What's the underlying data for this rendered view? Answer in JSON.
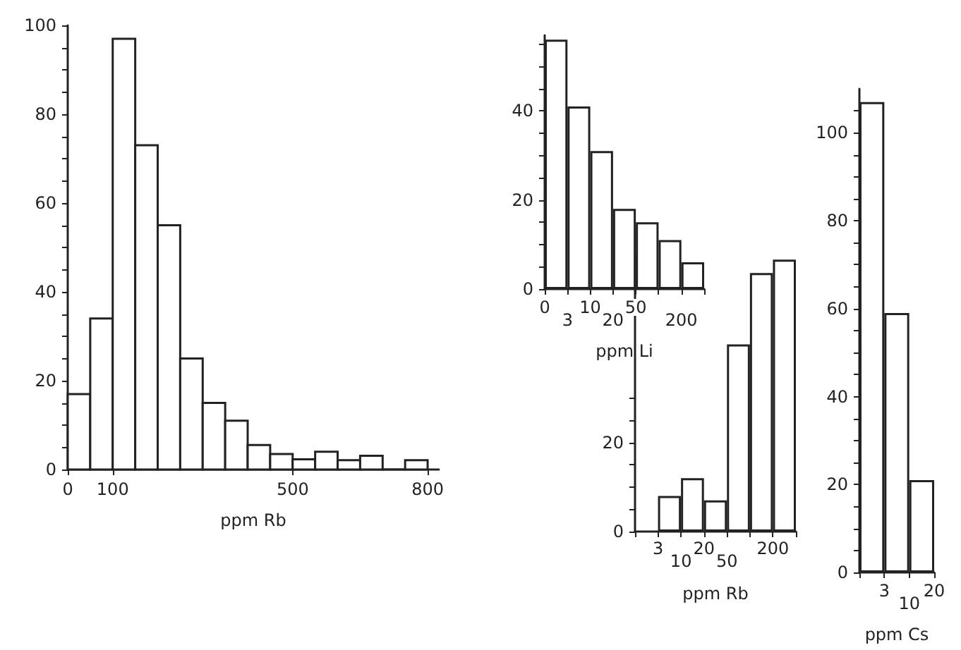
{
  "chart_data": [
    {
      "type": "histogram",
      "xlabel": "ppm Rb",
      "bins": [
        0,
        50,
        100,
        150,
        200,
        250,
        300,
        350,
        400,
        450,
        500,
        550,
        600,
        650,
        700,
        750,
        800
      ],
      "values": [
        17,
        34,
        97,
        73,
        55,
        25,
        15,
        11,
        5.5,
        3.5,
        2.3,
        4,
        2.1,
        3.1,
        0,
        2.1
      ],
      "color": "#ffffff",
      "xlim": [
        0,
        825
      ],
      "xticks": [
        0,
        100,
        500,
        800
      ],
      "ylim": [
        0,
        100
      ],
      "yticks": [
        0,
        {
          "value": 5,
          "label": null
        },
        {
          "value": 10,
          "label": null
        },
        {
          "value": 15,
          "label": null
        },
        20,
        {
          "value": 25,
          "label": null
        },
        {
          "value": 30,
          "label": null
        },
        {
          "value": 35,
          "label": null
        },
        40,
        {
          "value": 45,
          "label": null
        },
        {
          "value": 50,
          "label": null
        },
        {
          "value": 55,
          "label": null
        },
        60,
        {
          "value": 65,
          "label": null
        },
        {
          "value": 70,
          "label": null
        },
        {
          "value": 75,
          "label": null
        },
        80,
        {
          "value": 85,
          "label": null
        },
        {
          "value": 90,
          "label": null
        },
        {
          "value": 95,
          "label": null
        },
        100
      ],
      "grid": false
    },
    {
      "type": "bar",
      "xlabel": "ppm Li",
      "categories": [
        null,
        null,
        null,
        null,
        null,
        null,
        null
      ],
      "values": [
        56,
        41,
        31,
        18,
        15,
        11,
        6
      ],
      "color": "#ffffff",
      "annotations": [
        "0",
        "3",
        "10",
        "20",
        "50",
        "200"
      ],
      "ylim": [
        0,
        57
      ],
      "yticks": [
        0,
        {
          "value": 5,
          "label": null
        },
        {
          "value": 10,
          "label": null
        },
        {
          "value": 15,
          "label": null
        },
        20,
        {
          "value": 25,
          "label": null
        },
        {
          "value": 30,
          "label": null
        },
        {
          "value": 35,
          "label": null
        },
        40,
        {
          "value": 45,
          "label": null
        },
        {
          "value": 50,
          "label": null
        },
        {
          "value": 55,
          "label": null
        }
      ],
      "grid": false
    },
    {
      "type": "bar",
      "xlabel": "ppm Rb",
      "categories": [
        null,
        null,
        null,
        null,
        null,
        null,
        null
      ],
      "values": [
        null,
        8,
        12,
        7,
        42,
        58,
        61
      ],
      "color": "#ffffff",
      "annotations": [
        "3",
        "10",
        "20",
        "50",
        "200"
      ],
      "ylim": [
        0,
        62
      ],
      "yticks": [
        0,
        {
          "value": 5,
          "label": null
        },
        {
          "value": 10,
          "label": null
        },
        {
          "value": 15,
          "label": null
        },
        20,
        {
          "value": 25,
          "label": null
        },
        {
          "value": 30,
          "label": null
        }
      ],
      "grid": false
    },
    {
      "type": "bar",
      "xlabel": "ppm Cs",
      "categories": [
        null,
        null,
        null
      ],
      "values": [
        107,
        59,
        21
      ],
      "color": "#ffffff",
      "annotations": [
        "3",
        "10",
        "20"
      ],
      "ylim": [
        0,
        110
      ],
      "yticks": [
        0,
        {
          "value": 5,
          "label": null
        },
        {
          "value": 10,
          "label": null
        },
        {
          "value": 15,
          "label": null
        },
        20,
        {
          "value": 25,
          "label": null
        },
        {
          "value": 30,
          "label": null
        },
        {
          "value": 35,
          "label": null
        },
        40,
        {
          "value": 45,
          "label": null
        },
        {
          "value": 50,
          "label": null
        },
        {
          "value": 55,
          "label": null
        },
        60,
        {
          "value": 65,
          "label": null
        },
        {
          "value": 70,
          "label": null
        },
        {
          "value": 75,
          "label": null
        },
        80,
        {
          "value": 85,
          "label": null
        },
        {
          "value": 90,
          "label": null
        },
        {
          "value": 95,
          "label": null
        },
        100,
        {
          "value": 105,
          "label": null
        }
      ],
      "grid": false
    }
  ]
}
